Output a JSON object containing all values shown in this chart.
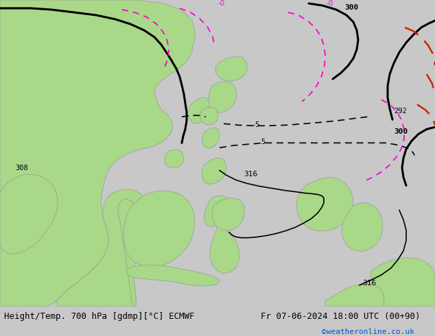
{
  "title_left": "Height/Temp. 700 hPa [gdmp][°C] ECMWF",
  "title_right": "Fr 07-06-2024 18:00 UTC (00+90)",
  "credit": "©weatheronline.co.uk",
  "credit_color": "#0055cc",
  "bg_color": "#c8c8c8",
  "land_green": "#a8d888",
  "land_gray": "#c0c0c0",
  "bottom_color": "#e0e0e0",
  "black": "#000000",
  "pink": "#ff00cc",
  "red_dash": "#cc2200",
  "figsize": [
    6.34,
    4.9
  ],
  "dpi": 100,
  "fs_main": 9,
  "fs_small": 8,
  "fs_credit": 8
}
